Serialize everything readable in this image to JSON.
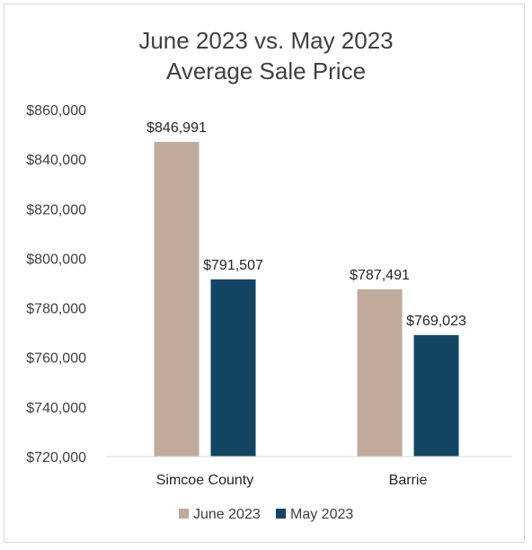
{
  "chart_data": {
    "type": "bar",
    "title_lines": [
      "June 2023 vs. May 2023",
      "Average Sale Price"
    ],
    "categories": [
      "Simcoe County",
      "Barrie"
    ],
    "series": [
      {
        "name": "June 2023",
        "color": "#c0aa9b",
        "values": [
          846991,
          787491
        ],
        "labels": [
          "$846,991",
          "$787,491"
        ]
      },
      {
        "name": "May 2023",
        "color": "#134563",
        "values": [
          791507,
          769023
        ],
        "labels": [
          "$791,507",
          "$769,023"
        ]
      }
    ],
    "ylim": [
      720000,
      860000
    ],
    "yticks": [
      720000,
      740000,
      760000,
      780000,
      800000,
      820000,
      840000,
      860000
    ],
    "ytick_labels": [
      "$720,000",
      "$740,000",
      "$760,000",
      "$780,000",
      "$800,000",
      "$820,000",
      "$840,000",
      "$860,000"
    ],
    "grid": false,
    "legend_position": "bottom",
    "axis_color": "#d9d9d9"
  }
}
